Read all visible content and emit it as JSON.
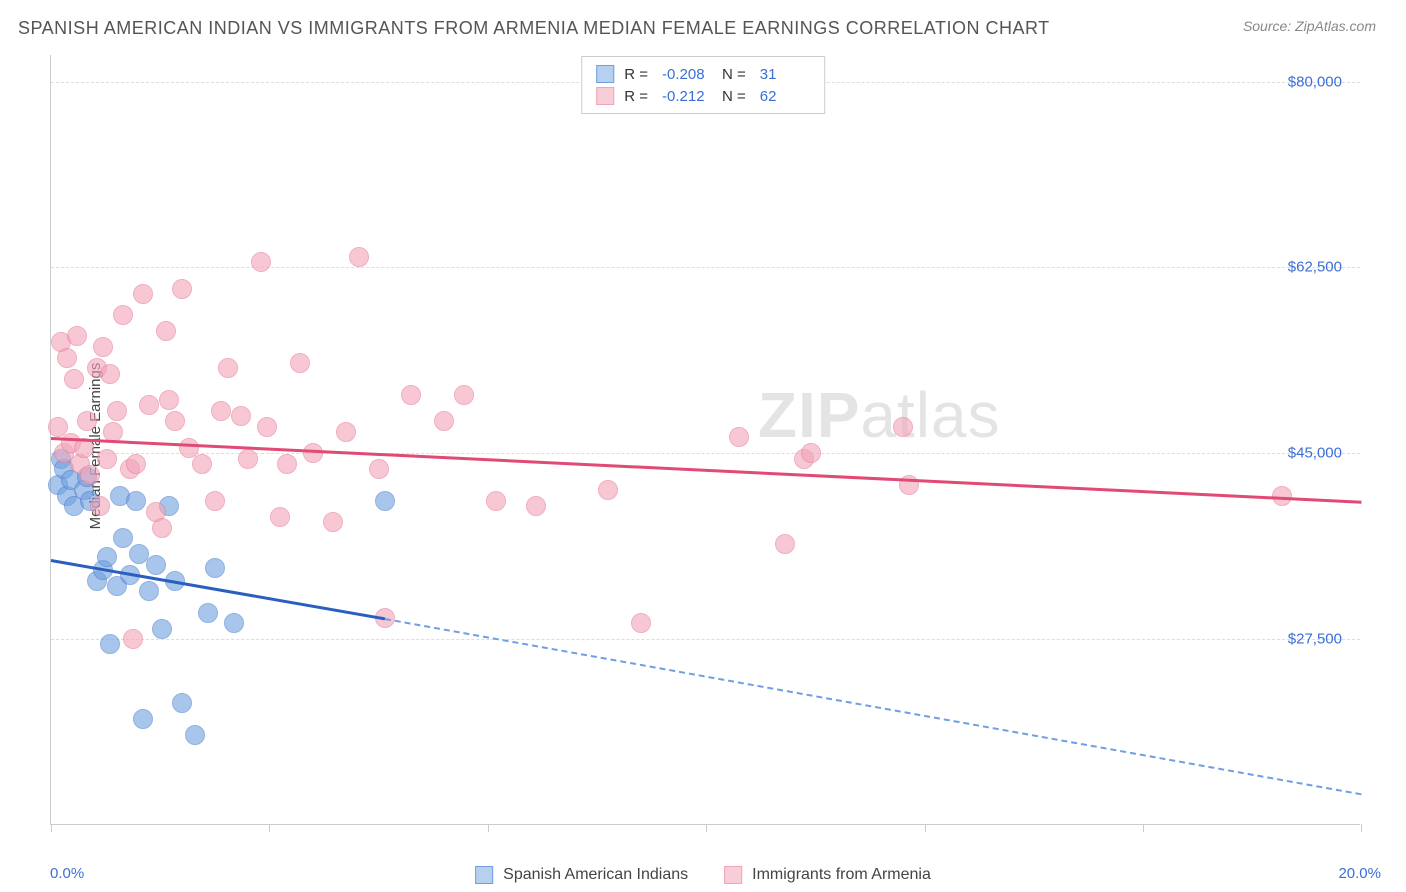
{
  "title": "SPANISH AMERICAN INDIAN VS IMMIGRANTS FROM ARMENIA MEDIAN FEMALE EARNINGS CORRELATION CHART",
  "source": "Source: ZipAtlas.com",
  "watermark_main": "ZIP",
  "watermark_sub": "atlas",
  "chart": {
    "type": "scatter",
    "ylabel": "Median Female Earnings",
    "background_color": "#ffffff",
    "grid_color": "#dddddd",
    "axis_color": "#cccccc",
    "tick_label_color": "#3b6fd6",
    "xlim": [
      0,
      20
    ],
    "ylim": [
      10000,
      82500
    ],
    "xticks": [
      0,
      3.33,
      6.67,
      10,
      13.34,
      16.67,
      20
    ],
    "xtick_labels_shown": {
      "0": "0.0%",
      "20": "20.0%"
    },
    "yticks": [
      27500,
      45000,
      62500,
      80000
    ],
    "ytick_labels": {
      "27500": "$27,500",
      "45000": "$45,000",
      "62500": "$62,500",
      "80000": "$80,000"
    },
    "ylabel_fontsize": 15,
    "tick_fontsize": 15,
    "title_fontsize": 18,
    "marker_radius": 10,
    "marker_fill_opacity": 0.35,
    "series": [
      {
        "name": "Spanish American Indians",
        "color": "#6f9fe0",
        "stroke": "#4a7fc9",
        "R": "-0.208",
        "N": "31",
        "trend": {
          "x1": 0,
          "y1": 35000,
          "x2": 5.1,
          "y2": 29500,
          "color": "#2a5fc0",
          "width": 2.5
        },
        "trend_extrapolate": {
          "x1": 5.1,
          "y1": 29500,
          "x2": 20,
          "y2": 13000,
          "color": "#6f9fe0",
          "dash": true
        },
        "points": [
          [
            0.1,
            42000
          ],
          [
            0.15,
            44500
          ],
          [
            0.2,
            43500
          ],
          [
            0.25,
            41000
          ],
          [
            0.3,
            42500
          ],
          [
            0.35,
            40000
          ],
          [
            0.5,
            41500
          ],
          [
            0.55,
            42800
          ],
          [
            0.6,
            40500
          ],
          [
            0.7,
            33000
          ],
          [
            0.8,
            34000
          ],
          [
            0.85,
            35200
          ],
          [
            0.9,
            27000
          ],
          [
            1.0,
            32500
          ],
          [
            1.05,
            41000
          ],
          [
            1.1,
            37000
          ],
          [
            1.2,
            33500
          ],
          [
            1.3,
            40500
          ],
          [
            1.35,
            35500
          ],
          [
            1.4,
            20000
          ],
          [
            1.5,
            32000
          ],
          [
            1.6,
            34500
          ],
          [
            1.7,
            28500
          ],
          [
            1.8,
            40000
          ],
          [
            1.9,
            33000
          ],
          [
            2.0,
            21500
          ],
          [
            2.2,
            18500
          ],
          [
            2.4,
            30000
          ],
          [
            2.5,
            34200
          ],
          [
            2.8,
            29000
          ],
          [
            5.1,
            40500
          ]
        ]
      },
      {
        "name": "Immigrants from Armenia",
        "color": "#f2a5b8",
        "stroke": "#e77a97",
        "R": "-0.212",
        "N": "62",
        "trend": {
          "x1": 0,
          "y1": 46500,
          "x2": 20,
          "y2": 40500,
          "color": "#e04a74",
          "width": 2.5
        },
        "points": [
          [
            0.1,
            47500
          ],
          [
            0.15,
            55500
          ],
          [
            0.2,
            45000
          ],
          [
            0.25,
            54000
          ],
          [
            0.3,
            46000
          ],
          [
            0.35,
            52000
          ],
          [
            0.4,
            56000
          ],
          [
            0.45,
            44000
          ],
          [
            0.5,
            45500
          ],
          [
            0.55,
            48000
          ],
          [
            0.6,
            43000
          ],
          [
            0.7,
            53000
          ],
          [
            0.75,
            40000
          ],
          [
            0.8,
            55000
          ],
          [
            0.85,
            44500
          ],
          [
            0.9,
            52500
          ],
          [
            0.95,
            47000
          ],
          [
            1.0,
            49000
          ],
          [
            1.1,
            58000
          ],
          [
            1.2,
            43500
          ],
          [
            1.25,
            27500
          ],
          [
            1.3,
            44000
          ],
          [
            1.4,
            60000
          ],
          [
            1.5,
            49500
          ],
          [
            1.6,
            39500
          ],
          [
            1.7,
            38000
          ],
          [
            1.75,
            56500
          ],
          [
            1.8,
            50000
          ],
          [
            1.9,
            48000
          ],
          [
            2.0,
            60500
          ],
          [
            2.1,
            45500
          ],
          [
            2.3,
            44000
          ],
          [
            2.5,
            40500
          ],
          [
            2.6,
            49000
          ],
          [
            2.7,
            53000
          ],
          [
            2.9,
            48500
          ],
          [
            3.0,
            44500
          ],
          [
            3.2,
            63000
          ],
          [
            3.3,
            47500
          ],
          [
            3.5,
            39000
          ],
          [
            3.6,
            44000
          ],
          [
            3.8,
            53500
          ],
          [
            4.0,
            45000
          ],
          [
            4.3,
            38500
          ],
          [
            4.5,
            47000
          ],
          [
            4.7,
            63500
          ],
          [
            5.0,
            43500
          ],
          [
            5.1,
            29500
          ],
          [
            5.5,
            50500
          ],
          [
            6.0,
            48000
          ],
          [
            6.3,
            50500
          ],
          [
            6.8,
            40500
          ],
          [
            7.4,
            40000
          ],
          [
            8.5,
            41500
          ],
          [
            9.0,
            29000
          ],
          [
            10.5,
            46500
          ],
          [
            11.2,
            36500
          ],
          [
            11.5,
            44500
          ],
          [
            11.6,
            45000
          ],
          [
            13.0,
            47500
          ],
          [
            13.1,
            42000
          ],
          [
            18.8,
            41000
          ]
        ]
      }
    ]
  },
  "legend_top": {
    "r_label": "R =",
    "n_label": "N ="
  },
  "legend_bottom": [
    {
      "swatch_fill": "#b8d0f0",
      "swatch_stroke": "#6f9fe0"
    },
    {
      "swatch_fill": "#f7cdd8",
      "swatch_stroke": "#f2a5b8"
    }
  ]
}
